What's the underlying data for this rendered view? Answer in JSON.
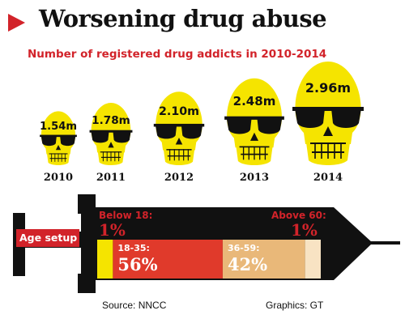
{
  "title": "Worsening drug abuse",
  "subtitle": "Number of registered drug addicts in 2010-2014",
  "colors": {
    "accent_red": "#d2232a",
    "skull_yellow": "#f5e400",
    "syringe_black": "#111111",
    "segment_yellow": "#f5e400",
    "segment_red": "#e03a2b",
    "segment_tan": "#e9b879",
    "segment_cream": "#f8e3c3"
  },
  "chart_data": [
    {
      "type": "bar",
      "title": "Number of registered drug addicts in 2010-2014",
      "categories": [
        "2010",
        "2011",
        "2012",
        "2013",
        "2014"
      ],
      "values": [
        1.54,
        1.78,
        2.1,
        2.48,
        2.96
      ],
      "value_labels": [
        "1.54m",
        "1.78m",
        "2.10m",
        "2.48m",
        "2.96m"
      ],
      "unit": "m",
      "marker": "skull-icon"
    },
    {
      "type": "bar",
      "title": "Age setup",
      "categories": [
        "Below 18",
        "18-35",
        "36-59",
        "Above 60"
      ],
      "values": [
        1,
        56,
        42,
        1
      ],
      "labels": {
        "below18_label": "Below 18:",
        "below18_value": "1%",
        "age18_35_label": "18-35:",
        "age18_35_value": "56%",
        "age36_59_label": "36-59:",
        "age36_59_value": "42%",
        "above60_label": "Above 60:",
        "above60_value": "1%"
      },
      "marker": "syringe-icon"
    }
  ],
  "footer": {
    "source": "Source: NNCC",
    "graphics": "Graphics: GT"
  }
}
